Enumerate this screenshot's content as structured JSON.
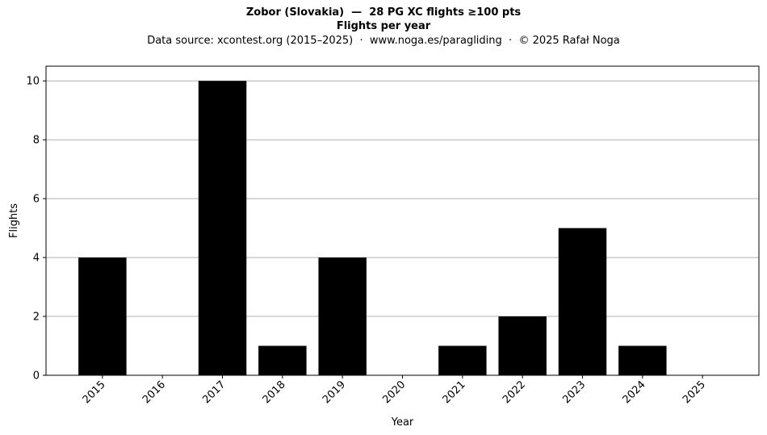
{
  "title_line1": "Zobor (Slovakia)  —  28 PG XC flights ≥100 pts",
  "title_line2": "Flights per year",
  "subtitle": "Data source: xcontest.org (2015–2025)  ·  www.noga.es/paragliding  ·  © 2025 Rafał Noga",
  "chart_data": {
    "type": "bar",
    "title": "Zobor (Slovakia)  —  28 PG XC flights ≥100 pts",
    "subtitle": "Flights per year",
    "xlabel": "Year",
    "ylabel": "Flights",
    "categories": [
      "2015",
      "2016",
      "2017",
      "2018",
      "2019",
      "2020",
      "2021",
      "2022",
      "2023",
      "2024",
      "2025"
    ],
    "values": [
      4,
      0,
      10,
      1,
      4,
      0,
      1,
      2,
      5,
      1,
      0
    ],
    "ylim": [
      0,
      10.5
    ],
    "yticks": [
      0,
      2,
      4,
      6,
      8,
      10
    ],
    "grid": "horizontal",
    "bar_color": "#000000",
    "grid_color": "#b0b0b0"
  }
}
